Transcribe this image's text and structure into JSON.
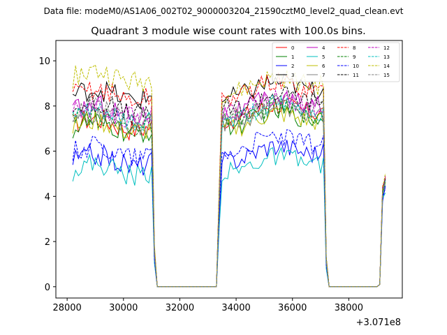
{
  "chart_data": {
    "type": "line",
    "suptitle": "Data file: modeM0/AS1A06_002T02_9000003204_21590cztM0_level2_quad_clean.evt",
    "title": "Quadrant 3 module wise count rates with 100.0s bins.",
    "xlabel": "",
    "ylabel": "",
    "x_offset_label": "+3.071e8",
    "xlim": [
      27600,
      39900
    ],
    "ylim": [
      -0.5,
      10.9
    ],
    "x_ticks": [
      28000,
      30000,
      32000,
      34000,
      36000,
      38000
    ],
    "x_tick_labels": [
      "28000",
      "30000",
      "32000",
      "34000",
      "36000",
      "38000"
    ],
    "y_ticks": [
      0,
      2,
      4,
      6,
      8,
      10
    ],
    "y_tick_labels": [
      "0",
      "2",
      "4",
      "6",
      "8",
      "10"
    ],
    "x_start": 28200,
    "bin": 100,
    "segments": [
      [
        28200,
        31000
      ],
      [
        33400,
        37200
      ],
      [
        39100,
        39300
      ]
    ],
    "series": [
      {
        "name": "0",
        "color": "#ff0000",
        "dashed": false,
        "level1": 7.2,
        "level2": 7.6
      },
      {
        "name": "1",
        "color": "#008000",
        "dashed": false,
        "level1": 7.0,
        "level2": 7.3
      },
      {
        "name": "2",
        "color": "#0000ff",
        "dashed": false,
        "level1": 5.6,
        "level2": 5.8
      },
      {
        "name": "3",
        "color": "#000000",
        "dashed": false,
        "level1": 8.5,
        "level2": 8.6
      },
      {
        "name": "4",
        "color": "#bf00bf",
        "dashed": false,
        "level1": 7.8,
        "level2": 7.9
      },
      {
        "name": "5",
        "color": "#00bfbf",
        "dashed": false,
        "level1": 5.2,
        "level2": 5.3
      },
      {
        "name": "6",
        "color": "#bfbf00",
        "dashed": false,
        "level1": 7.1,
        "level2": 7.2
      },
      {
        "name": "7",
        "color": "#808080",
        "dashed": false,
        "level1": 7.4,
        "level2": 7.5
      },
      {
        "name": "8",
        "color": "#ff0000",
        "dashed": true,
        "level1": 8.5,
        "level2": 8.6
      },
      {
        "name": "9",
        "color": "#008000",
        "dashed": true,
        "level1": 7.3,
        "level2": 7.5
      },
      {
        "name": "10",
        "color": "#0000ff",
        "dashed": true,
        "level1": 6.0,
        "level2": 6.2
      },
      {
        "name": "11",
        "color": "#000000",
        "dashed": true,
        "level1": 7.9,
        "level2": 8.1
      },
      {
        "name": "12",
        "color": "#bf00bf",
        "dashed": true,
        "level1": 7.7,
        "level2": 7.9
      },
      {
        "name": "13",
        "color": "#00bfbf",
        "dashed": true,
        "level1": 7.5,
        "level2": 7.6
      },
      {
        "name": "14",
        "color": "#bfbf00",
        "dashed": true,
        "level1": 9.3,
        "level2": 8.8
      },
      {
        "name": "15",
        "color": "#808080",
        "dashed": true,
        "level1": 7.6,
        "level2": 7.7
      }
    ],
    "legend_loc": "upper right",
    "legend_ncol": 4,
    "grid": false
  }
}
